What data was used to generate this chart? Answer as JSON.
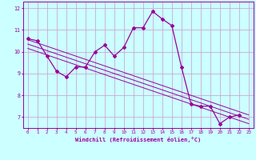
{
  "x": [
    0,
    1,
    2,
    3,
    4,
    5,
    6,
    7,
    8,
    9,
    10,
    11,
    12,
    13,
    14,
    15,
    16,
    17,
    18,
    19,
    20,
    21,
    22,
    23
  ],
  "line_main": [
    10.6,
    10.5,
    9.8,
    9.1,
    8.85,
    9.3,
    9.3,
    10.0,
    10.3,
    9.8,
    10.2,
    11.1,
    11.1,
    11.85,
    11.5,
    11.2,
    9.3,
    7.6,
    7.5,
    7.5,
    6.7,
    7.0,
    7.1,
    null
  ],
  "line_trend1": [
    10.55,
    10.4,
    10.25,
    10.1,
    9.95,
    9.8,
    9.65,
    9.5,
    9.35,
    9.2,
    9.05,
    8.9,
    8.75,
    8.6,
    8.45,
    8.3,
    8.15,
    8.0,
    7.85,
    7.7,
    7.55,
    7.4,
    7.25,
    7.1
  ],
  "line_trend2": [
    10.35,
    10.2,
    10.05,
    9.9,
    9.75,
    9.6,
    9.45,
    9.3,
    9.15,
    9.0,
    8.85,
    8.7,
    8.55,
    8.4,
    8.25,
    8.1,
    7.95,
    7.8,
    7.65,
    7.5,
    7.35,
    7.2,
    7.05,
    6.9
  ],
  "line_trend3": [
    10.15,
    10.0,
    9.85,
    9.7,
    9.55,
    9.4,
    9.25,
    9.1,
    8.95,
    8.8,
    8.65,
    8.5,
    8.35,
    8.2,
    8.05,
    7.9,
    7.75,
    7.6,
    7.45,
    7.3,
    7.15,
    7.0,
    6.85,
    6.7
  ],
  "color": "#990099",
  "bg_color": "#ccffff",
  "grid_color": "#cc99cc",
  "xlabel": "Windchill (Refroidissement éolien,°C)",
  "ylim": [
    6.5,
    12.3
  ],
  "xlim": [
    -0.5,
    23.5
  ],
  "yticks": [
    7,
    8,
    9,
    10,
    11,
    12
  ],
  "xticks": [
    0,
    1,
    2,
    3,
    4,
    5,
    6,
    7,
    8,
    9,
    10,
    11,
    12,
    13,
    14,
    15,
    16,
    17,
    18,
    19,
    20,
    21,
    22,
    23
  ]
}
